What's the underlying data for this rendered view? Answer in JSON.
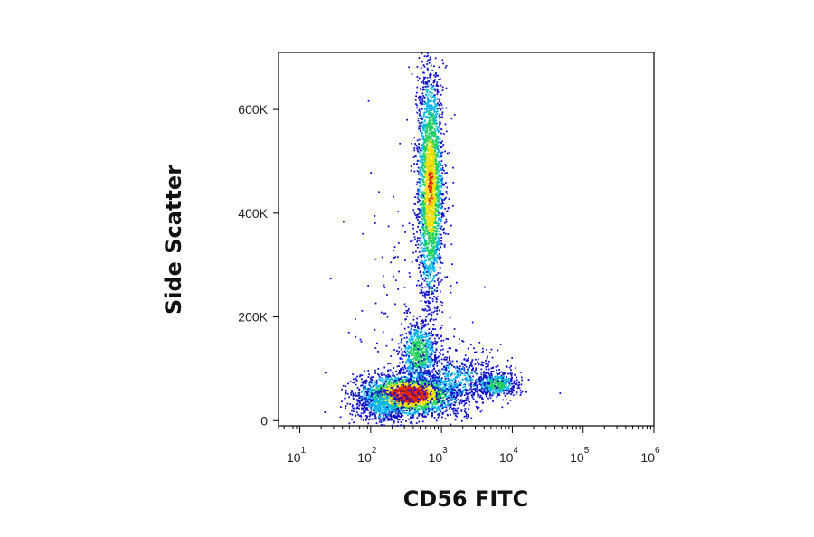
{
  "chart_data": {
    "type": "scatter",
    "style": "density-colored flow cytometry dot plot (blue → cyan → green → yellow → red)",
    "title": "",
    "xlabel": "CD56 FITC",
    "ylabel": "Side Scatter",
    "xscale": "log",
    "xlim": [
      5,
      1000000
    ],
    "ylim": [
      -10000,
      710000
    ],
    "x_ticks": [
      {
        "base": "10",
        "exp": "1",
        "value": 10
      },
      {
        "base": "10",
        "exp": "2",
        "value": 100
      },
      {
        "base": "10",
        "exp": "3",
        "value": 1000
      },
      {
        "base": "10",
        "exp": "4",
        "value": 10000
      },
      {
        "base": "10",
        "exp": "5",
        "value": 100000
      },
      {
        "base": "10",
        "exp": "6",
        "value": 1000000
      }
    ],
    "y_ticks": [
      {
        "label": "0",
        "value": 0
      },
      {
        "label": "200K",
        "value": 200000
      },
      {
        "label": "400K",
        "value": 400000
      },
      {
        "label": "600K",
        "value": 600000
      }
    ],
    "grid": false,
    "legend": "none",
    "colors": {
      "density_low": "#1010c8",
      "density_mid_low": "#00b4f0",
      "density_mid": "#20d060",
      "density_mid_high": "#f0e000",
      "density_high": "#e02000",
      "axis": "#000000"
    },
    "populations": [
      {
        "cx": 350,
        "cy": 50000,
        "sx": 0.35,
        "sy": 20000,
        "n": 2400,
        "peak": 1.0
      },
      {
        "cx": 480,
        "cy": 130000,
        "sx": 0.13,
        "sy": 30000,
        "n": 650,
        "peak": 0.5
      },
      {
        "cx": 700,
        "cy": 450000,
        "sx": 0.09,
        "sy": 110000,
        "n": 2400,
        "peak": 0.75
      },
      {
        "cx": 6000,
        "cy": 70000,
        "sx": 0.15,
        "sy": 12000,
        "n": 500,
        "peak": 0.45
      },
      {
        "cx": 1500,
        "cy": 80000,
        "sx": 0.35,
        "sy": 30000,
        "n": 600,
        "peak": 0.2
      },
      {
        "cx": 150,
        "cy": 30000,
        "sx": 0.2,
        "sy": 20000,
        "n": 450,
        "peak": 0.25
      },
      {
        "cx": 300,
        "cy": 220000,
        "sx": 0.45,
        "sy": 140000,
        "n": 150,
        "peak": 0.05
      }
    ]
  }
}
